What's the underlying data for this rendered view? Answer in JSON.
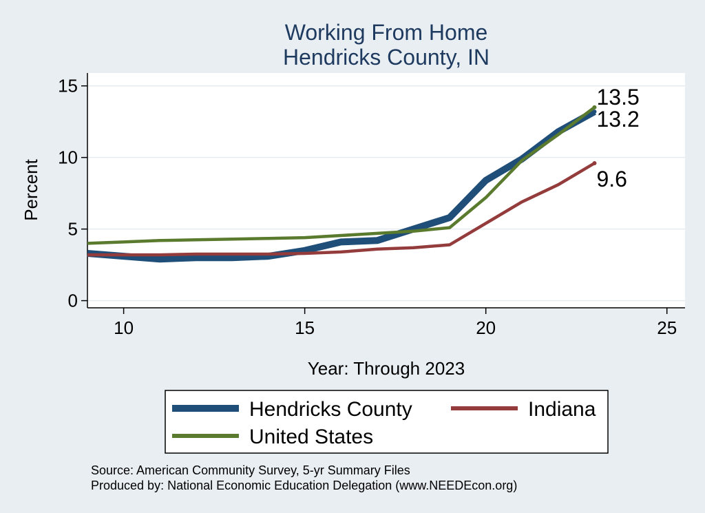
{
  "chart_data": {
    "type": "line",
    "title": [
      "Working From Home",
      "Hendricks County, IN"
    ],
    "xlabel": "Year: Through 2023",
    "ylabel": "Percent",
    "xlim": [
      9,
      25.5
    ],
    "ylim": [
      -0.5,
      15.9
    ],
    "x_ticks": [
      10,
      15,
      20,
      25
    ],
    "y_ticks": [
      0,
      5,
      10,
      15
    ],
    "grid": true,
    "legend_position": "bottom",
    "x": [
      9,
      10,
      11,
      12,
      13,
      14,
      15,
      16,
      17,
      18,
      19,
      20,
      21,
      22,
      23
    ],
    "series": [
      {
        "name": "Hendricks County",
        "color": "#1f4e79",
        "values": [
          3.3,
          3.1,
          2.9,
          3.0,
          3.0,
          3.1,
          3.5,
          4.1,
          4.2,
          5.0,
          5.8,
          8.4,
          9.9,
          11.8,
          13.2
        ]
      },
      {
        "name": "Indiana",
        "color": "#943b3c",
        "values": [
          3.2,
          3.2,
          3.2,
          3.25,
          3.25,
          3.25,
          3.3,
          3.4,
          3.6,
          3.7,
          3.9,
          5.4,
          6.9,
          8.1,
          9.6
        ]
      },
      {
        "name": "United States",
        "color": "#5a7a2e",
        "values": [
          4.0,
          4.1,
          4.2,
          4.25,
          4.3,
          4.35,
          4.4,
          4.55,
          4.7,
          4.85,
          5.1,
          7.2,
          9.8,
          11.6,
          13.5
        ]
      }
    ],
    "end_labels": [
      {
        "text": "13.5",
        "value": 13.5
      },
      {
        "text": "13.2",
        "value": 13.2
      },
      {
        "text": "9.6",
        "value": 9.6
      }
    ]
  },
  "notes": {
    "source": "Source: American Community Survey, 5-yr Summary Files",
    "produced_by": "Produced by: National Economic Education Delegation (www.NEEDEcon.org)"
  }
}
